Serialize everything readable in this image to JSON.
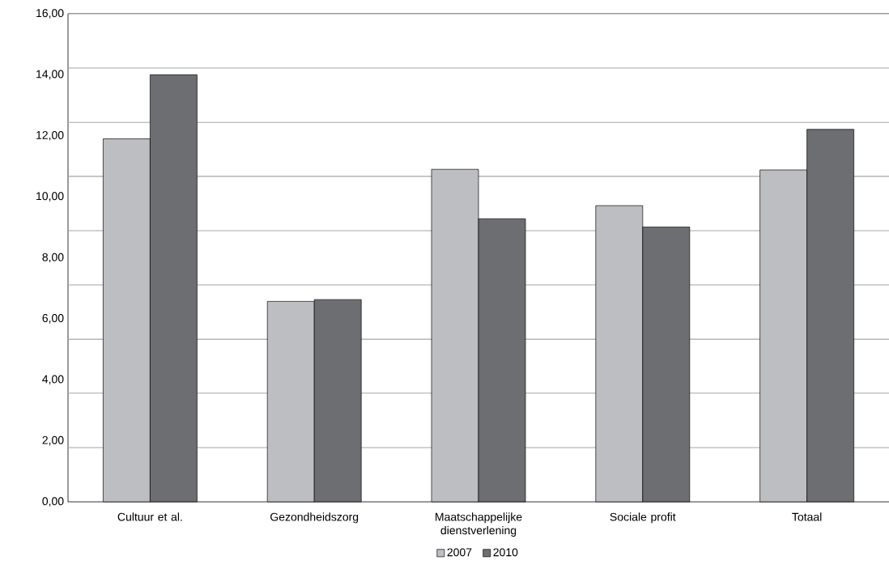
{
  "chart_data": {
    "type": "bar",
    "categories": [
      "Cultuur et al.",
      "Gezondheidszorg",
      "Maatschappelijke dienstverlening",
      "Sociale profit",
      "Totaal"
    ],
    "series": [
      {
        "name": "2007",
        "color": "#bdbec2",
        "values": [
          11.9,
          6.57,
          10.9,
          9.71,
          10.88
        ]
      },
      {
        "name": "2010",
        "color": "#6d6e72",
        "values": [
          14.0,
          6.63,
          9.28,
          9.01,
          12.21
        ]
      }
    ],
    "ylim": [
      0,
      16
    ],
    "yticks": [
      {
        "value": 0,
        "label": "0,00"
      },
      {
        "value": 2,
        "label": "2,00"
      },
      {
        "value": 4,
        "label": "4,00"
      },
      {
        "value": 6,
        "label": "6,00"
      },
      {
        "value": 8,
        "label": "8,00"
      },
      {
        "value": 10,
        "label": "10,00"
      },
      {
        "value": 12,
        "label": "12,00"
      },
      {
        "value": 14,
        "label": "14,00"
      },
      {
        "value": 16,
        "label": "16,00"
      },
      {
        "value": 1.78,
        "label": null
      },
      {
        "value": 3.56,
        "label": null
      },
      {
        "value": 5.33,
        "label": null
      },
      {
        "value": 7.11,
        "label": null
      },
      {
        "value": 8.89,
        "label": null
      },
      {
        "value": 10.67,
        "label": null
      },
      {
        "value": 12.44,
        "label": null
      },
      {
        "value": 14.22,
        "label": null
      }
    ],
    "grid": "y",
    "legend": "bottom"
  }
}
